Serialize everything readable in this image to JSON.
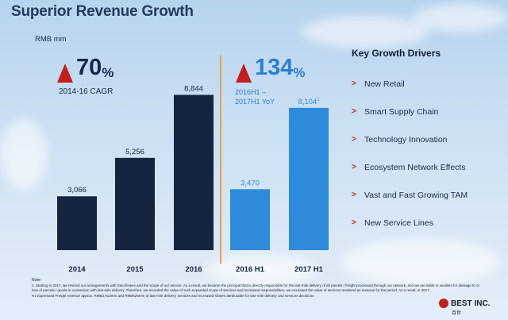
{
  "title": "Superior Revenue Growth",
  "unit": "RMB mm",
  "growth_left": {
    "value": "70",
    "suffix": "%",
    "label": "2014-16 CAGR"
  },
  "growth_right": {
    "value": "134",
    "suffix": "%",
    "label_line1": "2016H1 –",
    "label_line2": "2017H1 YoY"
  },
  "chart_data": {
    "type": "bar",
    "categories": [
      "2014",
      "2015",
      "2016",
      "2016 H1",
      "2017 H1"
    ],
    "values": [
      3066,
      5256,
      8844,
      3470,
      8104
    ],
    "value_labels": [
      "3,066",
      "5,256",
      "8,844",
      "3,470",
      "8,104"
    ],
    "superscripts": [
      "",
      "",
      "",
      "",
      "1"
    ],
    "colors": [
      "#15243f",
      "#15243f",
      "#15243f",
      "#2e8bdc",
      "#2e8bdc"
    ],
    "ylim": [
      0,
      9500
    ]
  },
  "drivers": {
    "title": "Key Growth Drivers",
    "chevron": ">",
    "items": [
      "New Retail",
      "Smart Supply Chain",
      "Technology Innovation",
      "Ecosystem Network Effects",
      "Vast and Fast Growing TAM",
      "New Service Lines"
    ]
  },
  "notes": {
    "head": "Note:",
    "line1": "1. Starting in 2017, we revised our arrangements with franchisees and the scope of our service. As a result, we became the principal that is directly responsible for the last-mile delivery of all parcels / freight processed through our network, and we are liable to senders for damage to or loss of parcels / goods in connection with last-mile delivery. Therefore, we recorded the value of such expanded scope of services and increased responsibilities, we increased the value of services rendered as revenue for the period. As a result, in 2017",
    "line2": "H1 Expressed Freight revenue approx. RMB3,913mm and RMB626mm of last-mile delivery services and increased shares attributable for last-mile delivery and services decisions"
  },
  "logo": {
    "name": "BEST INC.",
    "sub": "百世"
  },
  "colors": {
    "accent_red": "#c0201e",
    "navy": "#15243f",
    "blue": "#2e8bdc",
    "divider": "#e6a34a"
  }
}
